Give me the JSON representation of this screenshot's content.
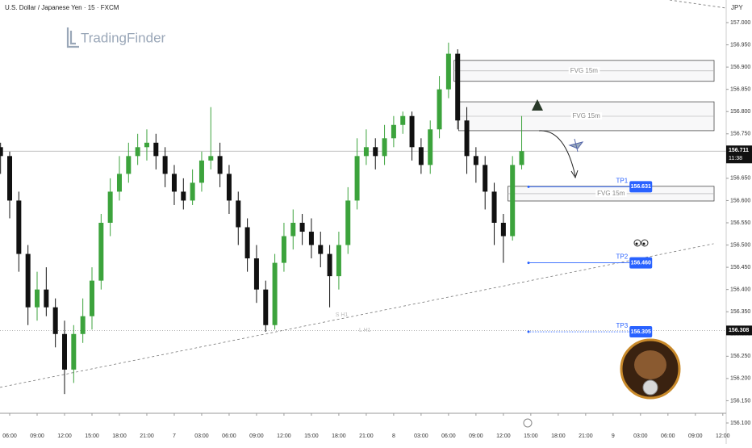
{
  "chart_data": {
    "type": "candlestick",
    "title": "U.S. Dollar / Japanese Yen · 15 · FXCM",
    "currency": "JPY",
    "watermark": "TradingFinder",
    "up_color": "#3ca33c",
    "down_color": "#111111",
    "x": [
      -1,
      0,
      1,
      2,
      3,
      4,
      5,
      6,
      7,
      8,
      9,
      10,
      11,
      12,
      13,
      14,
      15,
      16,
      17,
      18,
      19,
      20,
      21,
      22,
      23,
      24,
      25,
      26,
      27,
      28,
      29,
      30,
      31,
      32,
      33,
      34,
      35,
      36,
      37,
      38,
      39,
      40,
      41,
      42,
      43,
      44,
      45,
      46,
      47,
      48,
      49,
      50,
      51,
      52,
      53,
      54,
      55,
      56
    ],
    "open": [
      156.72,
      156.7,
      156.6,
      156.48,
      156.36,
      156.4,
      156.36,
      156.3,
      156.22,
      156.3,
      156.34,
      156.42,
      156.55,
      156.62,
      156.66,
      156.7,
      156.72,
      156.73,
      156.7,
      156.66,
      156.62,
      156.6,
      156.64,
      156.69,
      156.7,
      156.66,
      156.6,
      156.54,
      156.47,
      156.4,
      156.32,
      156.46,
      156.52,
      156.55,
      156.53,
      156.5,
      156.48,
      156.43,
      156.5,
      156.6,
      156.7,
      156.72,
      156.7,
      156.74,
      156.77,
      156.79,
      156.72,
      156.68,
      156.76,
      156.85,
      156.93,
      156.78,
      156.7,
      156.68,
      156.62,
      156.55,
      156.52,
      156.68
    ],
    "high": [
      156.73,
      156.71,
      156.62,
      156.5,
      156.44,
      156.45,
      156.38,
      156.33,
      156.32,
      156.38,
      156.45,
      156.57,
      156.65,
      156.7,
      156.73,
      156.75,
      156.76,
      156.75,
      156.72,
      156.68,
      156.65,
      156.67,
      156.71,
      156.81,
      156.73,
      156.68,
      156.62,
      156.56,
      156.5,
      156.42,
      156.48,
      156.55,
      156.58,
      156.57,
      156.56,
      156.53,
      156.5,
      156.53,
      156.63,
      156.74,
      156.76,
      156.74,
      156.77,
      156.79,
      156.8,
      156.8,
      156.74,
      156.78,
      156.88,
      156.955,
      156.94,
      156.81,
      156.72,
      156.7,
      156.64,
      156.57,
      156.7,
      156.79
    ],
    "low": [
      156.66,
      156.56,
      156.44,
      156.32,
      156.33,
      156.34,
      156.27,
      156.165,
      156.19,
      156.28,
      156.31,
      156.4,
      156.52,
      156.6,
      156.64,
      156.68,
      156.69,
      156.67,
      156.63,
      156.59,
      156.58,
      156.59,
      156.62,
      156.67,
      156.63,
      156.57,
      156.5,
      156.44,
      156.37,
      156.305,
      156.31,
      156.44,
      156.49,
      156.5,
      156.47,
      156.45,
      156.36,
      156.4,
      156.48,
      156.58,
      156.68,
      156.67,
      156.68,
      156.72,
      156.75,
      156.69,
      156.66,
      156.66,
      156.74,
      156.83,
      156.76,
      156.66,
      156.64,
      156.58,
      156.5,
      156.46,
      156.51,
      156.67
    ],
    "close": [
      156.7,
      156.6,
      156.48,
      156.36,
      156.4,
      156.36,
      156.3,
      156.22,
      156.3,
      156.34,
      156.42,
      156.55,
      156.62,
      156.66,
      156.7,
      156.72,
      156.73,
      156.7,
      156.66,
      156.62,
      156.6,
      156.64,
      156.69,
      156.7,
      156.66,
      156.6,
      156.54,
      156.47,
      156.4,
      156.32,
      156.46,
      156.52,
      156.55,
      156.53,
      156.5,
      156.48,
      156.43,
      156.5,
      156.6,
      156.7,
      156.72,
      156.7,
      156.74,
      156.77,
      156.79,
      156.72,
      156.68,
      156.76,
      156.85,
      156.93,
      156.78,
      156.7,
      156.68,
      156.62,
      156.55,
      156.52,
      156.68,
      156.711
    ],
    "xlim": [
      -1.06,
      78.37
    ],
    "ylim": [
      156.1,
      157.0
    ],
    "xticks": [
      {
        "value": 0,
        "label": "06:00"
      },
      {
        "value": 3,
        "label": "09:00"
      },
      {
        "value": 6,
        "label": "12:00"
      },
      {
        "value": 9,
        "label": "15:00"
      },
      {
        "value": 12,
        "label": "18:00"
      },
      {
        "value": 15,
        "label": "21:00"
      },
      {
        "value": 18,
        "label": "7"
      },
      {
        "value": 21,
        "label": "03:00"
      },
      {
        "value": 24,
        "label": "06:00"
      },
      {
        "value": 27,
        "label": "09:00"
      },
      {
        "value": 30,
        "label": "12:00"
      },
      {
        "value": 33,
        "label": "15:00"
      },
      {
        "value": 36,
        "label": "18:00"
      },
      {
        "value": 39,
        "label": "21:00"
      },
      {
        "value": 42,
        "label": "8"
      },
      {
        "value": 45,
        "label": "03:00"
      },
      {
        "value": 48,
        "label": "06:00"
      },
      {
        "value": 51,
        "label": "09:00"
      },
      {
        "value": 54,
        "label": "12:00"
      },
      {
        "value": 57,
        "label": "15:00"
      },
      {
        "value": 60,
        "label": "18:00"
      },
      {
        "value": 63,
        "label": "21:00"
      },
      {
        "value": 66,
        "label": "9"
      },
      {
        "value": 69,
        "label": "03:00"
      },
      {
        "value": 72,
        "label": "06:00"
      },
      {
        "value": 75,
        "label": "09:00"
      },
      {
        "value": 78,
        "label": "12:00"
      }
    ],
    "yticks": [
      {
        "value": 157.0,
        "label": "157.000"
      },
      {
        "value": 156.95,
        "label": "156.950"
      },
      {
        "value": 156.9,
        "label": "156.900"
      },
      {
        "value": 156.85,
        "label": "156.850"
      },
      {
        "value": 156.8,
        "label": "156.800"
      },
      {
        "value": 156.75,
        "label": "156.750"
      },
      {
        "value": 156.7,
        "label": "156.700"
      },
      {
        "value": 156.65,
        "label": "156.650"
      },
      {
        "value": 156.6,
        "label": "156.600"
      },
      {
        "value": 156.55,
        "label": "156.550"
      },
      {
        "value": 156.5,
        "label": "156.500"
      },
      {
        "value": 156.45,
        "label": "156.450"
      },
      {
        "value": 156.4,
        "label": "156.400"
      },
      {
        "value": 156.35,
        "label": "156.350"
      },
      {
        "value": 156.3,
        "label": "156.300"
      },
      {
        "value": 156.25,
        "label": "156.250"
      },
      {
        "value": 156.2,
        "label": "156.200"
      },
      {
        "value": 156.15,
        "label": "156.150"
      },
      {
        "value": 156.1,
        "label": "156.100"
      }
    ],
    "zones": [
      {
        "label": "FVG 15m",
        "top": 156.915,
        "bottom": 156.868,
        "x_start": 48.6
      },
      {
        "label": "FVG 15m",
        "top": 156.822,
        "bottom": 156.757,
        "x_start": 49.1
      },
      {
        "label": "FVG 15m",
        "top": 156.632,
        "bottom": 156.599,
        "x_start": 54.5
      }
    ],
    "targets": [
      {
        "label": "TP1",
        "value": 156.631,
        "value_label": "156.631",
        "x_start": 56.75,
        "x_end": 67.8
      },
      {
        "label": "TP2",
        "value": 156.46,
        "value_label": "156.460",
        "x_start": 56.75,
        "x_end": 67.8
      },
      {
        "label": "TP3",
        "value": 156.305,
        "value_label": "156.305",
        "x_start": 56.75,
        "x_end": 67.8
      }
    ],
    "last": {
      "value": 156.711,
      "countdown": "11:38"
    },
    "levels": [
      {
        "label": "L H1",
        "value": 156.308
      }
    ],
    "trendline": {
      "label": "S H1",
      "x": [
        -1.06,
        77.0
      ],
      "y": [
        156.18,
        156.503
      ]
    }
  }
}
